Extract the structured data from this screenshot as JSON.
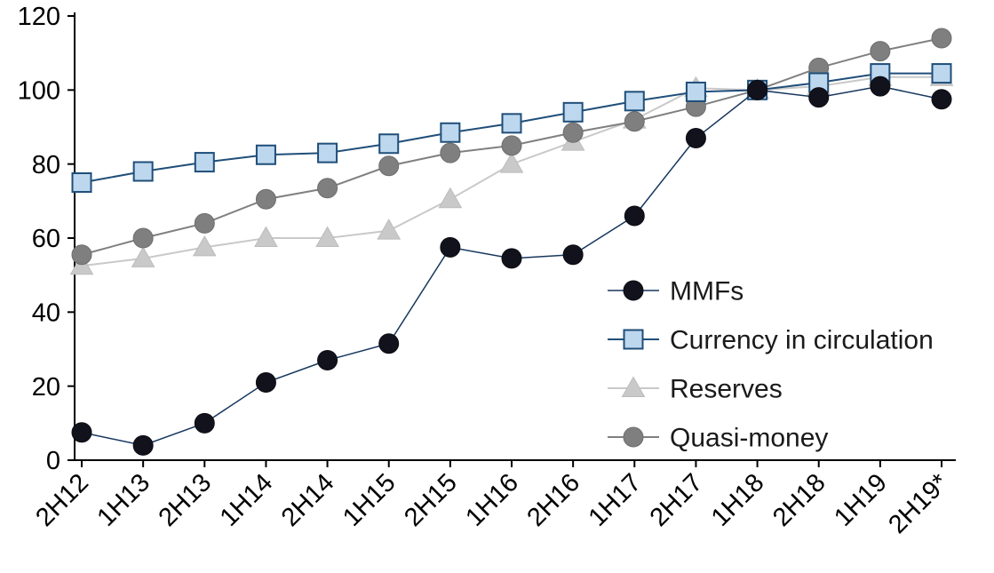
{
  "chart_data": {
    "type": "line",
    "title": "",
    "xlabel": "",
    "ylabel": "",
    "ylim": [
      0,
      120
    ],
    "yticks": [
      0,
      20,
      40,
      60,
      80,
      100,
      120
    ],
    "grid": false,
    "legend_position": "center-right",
    "categories": [
      "2H12",
      "1H13",
      "2H13",
      "1H14",
      "2H14",
      "1H15",
      "2H15",
      "1H16",
      "2H16",
      "1H17",
      "2H17",
      "1H18",
      "2H18",
      "1H19",
      "2H19*"
    ],
    "series": [
      {
        "name": "MMFs",
        "marker": "circle",
        "marker_fill": "#12121c",
        "marker_stroke": "#0c0c14",
        "line_color": "#17375e",
        "line_width": 1.5,
        "values": [
          7.5,
          4,
          10,
          21,
          27,
          31.5,
          57.5,
          54.5,
          55.5,
          66,
          87,
          100,
          98,
          101,
          97.5
        ]
      },
      {
        "name": "Currency in circulation",
        "marker": "square",
        "marker_fill": "#bdd7ee",
        "marker_stroke": "#1f4e79",
        "line_color": "#1f4e79",
        "line_width": 2,
        "values": [
          75,
          78,
          80.5,
          82.5,
          83,
          85.5,
          88.5,
          91,
          94,
          97,
          99.5,
          100,
          102,
          104.5,
          104.5
        ]
      },
      {
        "name": "Reserves",
        "marker": "triangle",
        "marker_fill": "#c9c9c9",
        "marker_stroke": "#bcbcbc",
        "line_color": "#c9c9c9",
        "line_width": 2,
        "values": [
          52.5,
          54.5,
          57.5,
          60,
          60,
          62,
          70.5,
          80,
          86,
          92,
          100.5,
          100,
          101,
          103.5,
          103.5
        ]
      },
      {
        "name": "Quasi-money",
        "marker": "circle",
        "marker_fill": "#7f7f7f",
        "marker_stroke": "#6e6e6e",
        "line_color": "#808080",
        "line_width": 2,
        "values": [
          55.5,
          60,
          64,
          70.5,
          73.5,
          79.5,
          83,
          85,
          88.5,
          91.5,
          95.5,
          100,
          106,
          110.5,
          114
        ]
      }
    ],
    "colors": {
      "axis": "#000000",
      "tick_label": "#000000",
      "legend_text": "#1a1a1a",
      "background": "#ffffff"
    }
  }
}
